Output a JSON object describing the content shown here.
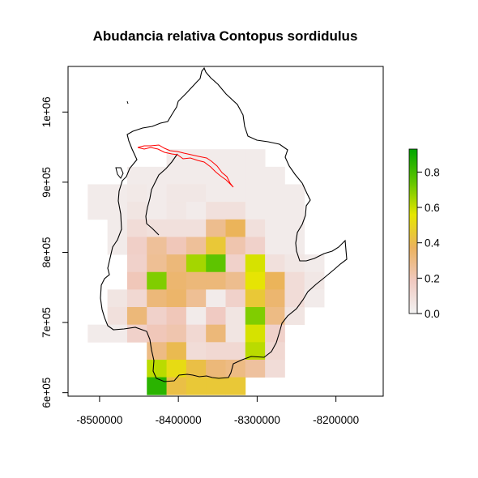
{
  "chart_data": {
    "type": "heatmap",
    "title": "Abudancia relativa Contopus sordidulus",
    "xlabel": "",
    "ylabel": "",
    "xlim": [
      -8540000,
      -8140000
    ],
    "ylim": [
      595000,
      1065000
    ],
    "x_ticks": [
      -8500000,
      -8400000,
      -8300000,
      -8200000
    ],
    "x_tick_labels": [
      "-8500000",
      "-8400000",
      "-8300000",
      "-8200000"
    ],
    "y_ticks": [
      600000,
      700000,
      800000,
      900000,
      1000000
    ],
    "y_tick_labels": [
      "6e+05",
      "7e+05",
      "8e+05",
      "9e+05",
      "1e+06"
    ],
    "grid": false,
    "cell_size": 25000,
    "colorbar": {
      "ticks": [
        0.0,
        0.2,
        0.4,
        0.6,
        0.8
      ],
      "tick_labels": [
        "0.0",
        "0.2",
        "0.4",
        "0.6",
        "0.8"
      ],
      "max": 0.93,
      "colors": [
        "#f2f2f2",
        "#f0c9c0",
        "#ebb25e",
        "#e6e600",
        "#61c500",
        "#00a600"
      ]
    },
    "grid_origin_x": -8515000,
    "grid_origin_y": 947000,
    "cells": [
      [
        null,
        null,
        null,
        null,
        0.03,
        0.03,
        0.03,
        0.03,
        0.03,
        null,
        null,
        null,
        null
      ],
      [
        null,
        null,
        0.03,
        0.03,
        0.03,
        0.03,
        0.03,
        0.03,
        0.03,
        0.03,
        null,
        null,
        null
      ],
      [
        0.03,
        0.03,
        0.04,
        0.03,
        0.05,
        0.05,
        0.03,
        0.03,
        0.03,
        0.03,
        0.03,
        null,
        null
      ],
      [
        0.03,
        0.03,
        0.06,
        0.03,
        0.05,
        0.03,
        0.08,
        0.08,
        0.03,
        0.03,
        0.03,
        null,
        null
      ],
      [
        null,
        0.03,
        0.1,
        0.08,
        0.08,
        0.08,
        0.28,
        0.38,
        0.08,
        0.03,
        0.03,
        null,
        null
      ],
      [
        null,
        0.03,
        0.16,
        0.26,
        0.2,
        0.26,
        0.45,
        0.22,
        0.15,
        0.03,
        0.03,
        null,
        null
      ],
      [
        null,
        null,
        0.15,
        0.27,
        0.32,
        0.65,
        0.75,
        0.15,
        0.58,
        0.08,
        0.05,
        0.03,
        null
      ],
      [
        null,
        null,
        0.2,
        0.7,
        0.34,
        0.32,
        0.32,
        0.28,
        0.55,
        0.38,
        0.1,
        0.05,
        null
      ],
      [
        null,
        0.06,
        0.12,
        0.32,
        0.35,
        0.27,
        0.03,
        0.15,
        0.45,
        0.34,
        0.1,
        0.03,
        null
      ],
      [
        null,
        0.08,
        0.32,
        0.15,
        0.2,
        0.03,
        0.18,
        0.06,
        0.7,
        0.3,
        0.06,
        null,
        null
      ],
      [
        0.03,
        0.03,
        0.15,
        0.2,
        0.22,
        0.12,
        0.32,
        0.06,
        0.58,
        0.15,
        null,
        null,
        null
      ],
      [
        null,
        null,
        null,
        0.3,
        0.4,
        0.1,
        0.12,
        0.12,
        0.62,
        0.12,
        null,
        null,
        null
      ],
      [
        null,
        null,
        null,
        0.62,
        0.52,
        0.42,
        0.32,
        0.3,
        0.25,
        0.1,
        null,
        null,
        null
      ],
      [
        null,
        null,
        null,
        0.85,
        0.42,
        0.45,
        0.45,
        0.45,
        null,
        null,
        null,
        null,
        null
      ]
    ]
  }
}
